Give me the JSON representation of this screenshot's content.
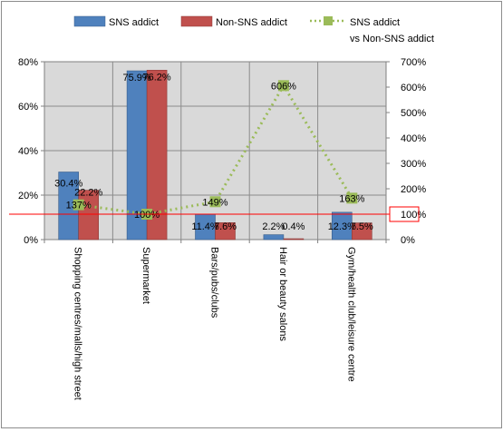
{
  "chart_data": {
    "type": "bar",
    "categories": [
      "Shopping centres/malls/high street",
      "Supermarket",
      "Bars/pubs/clubs",
      "Hair or beauty salons",
      "Gym/health club/leisure centre"
    ],
    "series": [
      {
        "name": "SNS addict",
        "type": "bar",
        "axis": "left",
        "color": "#4f81bd",
        "values": [
          30.4,
          75.9,
          11.4,
          2.2,
          12.3
        ],
        "labels": [
          "30.4%",
          "75.9%",
          "11.4%",
          "2.2%",
          "12.3%"
        ]
      },
      {
        "name": "Non-SNS addict",
        "type": "bar",
        "axis": "left",
        "color": "#c0504d",
        "values": [
          22.2,
          76.2,
          7.6,
          0.4,
          7.5
        ],
        "labels": [
          "22.2%",
          "76.2%",
          "7.6%",
          "0.4%",
          "7.5%"
        ]
      },
      {
        "name": "SNS addict vs Non-SNS addict",
        "legend_lines": [
          "SNS addict",
          "vs Non-SNS addict"
        ],
        "type": "line",
        "axis": "right",
        "color": "#9bbb59",
        "values": [
          137,
          100,
          149,
          606,
          163
        ],
        "labels": [
          "137%",
          "100%",
          "149%",
          "606%",
          "163%"
        ]
      }
    ],
    "y_left": {
      "min": 0,
      "max": 80,
      "ticks": [
        "0%",
        "20%",
        "40%",
        "60%",
        "80%"
      ]
    },
    "y_right": {
      "min": 0,
      "max": 700,
      "ticks": [
        "0%",
        "100%",
        "200%",
        "300%",
        "400%",
        "500%",
        "600%",
        "700%"
      ]
    },
    "reference_line": {
      "axis": "right",
      "value": 100,
      "color": "#ff0000"
    },
    "grid": true,
    "legend": "top",
    "plot_background": "#d9d9d9"
  }
}
